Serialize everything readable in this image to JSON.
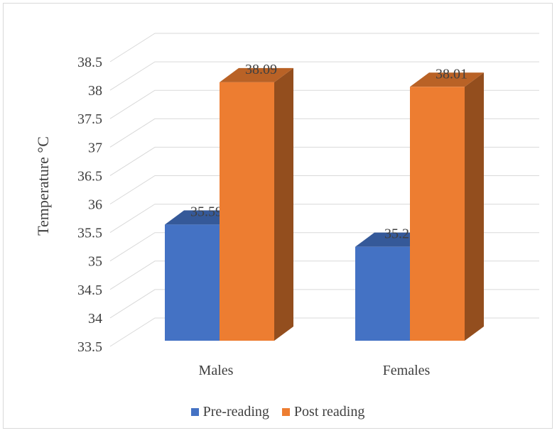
{
  "chart_data": {
    "type": "bar",
    "style": "3d-clustered-column",
    "title": "",
    "xlabel": "",
    "ylabel": "Temperature °C",
    "ylim": [
      33.5,
      38.5
    ],
    "y_ticks": [
      "33.5",
      "34",
      "34.5",
      "35",
      "35.5",
      "36",
      "36.5",
      "37",
      "37.5",
      "38",
      "38.5"
    ],
    "categories": [
      "Males",
      "Females"
    ],
    "series": [
      {
        "name": "Pre-reading",
        "values": [
          35.59,
          35.2
        ],
        "labels": [
          "35.59",
          "35.2"
        ],
        "color": "#4472c4"
      },
      {
        "name": "Post reading",
        "values": [
          38.09,
          38.01
        ],
        "labels": [
          "38.09",
          "38.01"
        ],
        "color": "#ed7d31"
      }
    ],
    "grid": true,
    "legend_position": "bottom"
  }
}
